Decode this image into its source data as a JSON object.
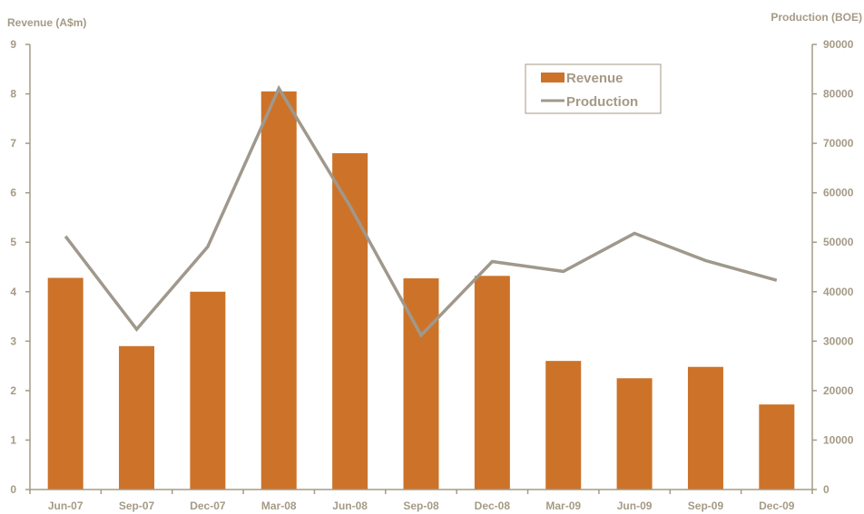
{
  "chart_data": {
    "type": "bar",
    "categories": [
      "Jun-07",
      "Sep-07",
      "Dec-07",
      "Mar-08",
      "Jun-08",
      "Sep-08",
      "Dec-08",
      "Mar-09",
      "Jun-09",
      "Sep-09",
      "Dec-09"
    ],
    "series": [
      {
        "name": "Revenue",
        "type": "bar",
        "axis": "left",
        "color": "#cc7329",
        "values": [
          4.28,
          2.9,
          4.0,
          8.05,
          6.8,
          4.27,
          4.32,
          2.6,
          2.25,
          2.48,
          1.72
        ]
      },
      {
        "name": "Production",
        "type": "line",
        "axis": "right",
        "color": "#a0988c",
        "values": [
          51200,
          32400,
          49100,
          81100,
          57300,
          31200,
          46100,
          44100,
          51800,
          46300,
          42300
        ]
      }
    ],
    "ylabel": "Revenue (A$m)",
    "y2label": "Production (BOE)",
    "ylim": [
      0,
      9
    ],
    "y2lim": [
      0,
      90000
    ],
    "yticks": [
      "0",
      "1",
      "2",
      "3",
      "4",
      "5",
      "6",
      "7",
      "8",
      "9"
    ],
    "y2ticks": [
      "0",
      "10000",
      "20000",
      "30000",
      "40000",
      "50000",
      "60000",
      "70000",
      "80000",
      "90000"
    ],
    "grid": false,
    "legend_position": "top-right",
    "axis_color": "#a59a86"
  }
}
